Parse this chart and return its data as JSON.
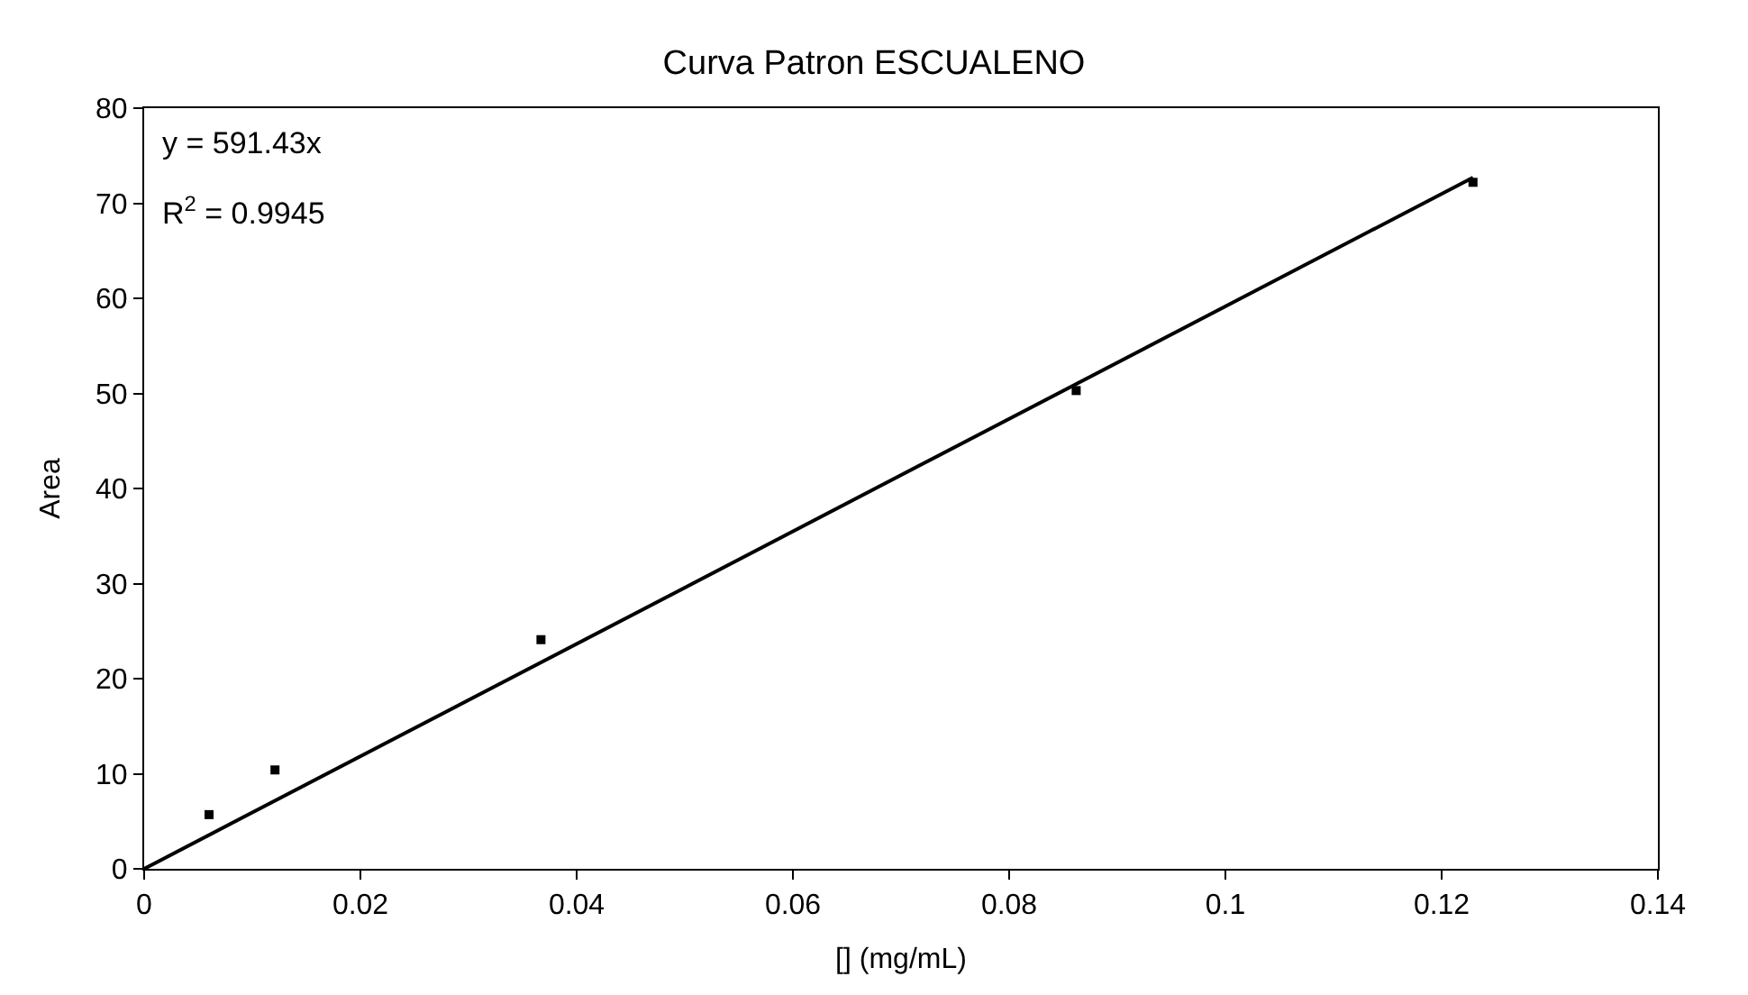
{
  "chart_data": {
    "type": "scatter",
    "title": "Curva Patron ESCUALENO",
    "xlabel": "[] (mg/mL)",
    "ylabel": "Area",
    "xlim": [
      0,
      0.14
    ],
    "xticks": [
      0,
      0.02,
      0.04,
      0.06,
      0.08,
      0.1,
      0.12,
      0.14
    ],
    "ylim": [
      0,
      80
    ],
    "yticks": [
      0,
      10,
      20,
      30,
      40,
      50,
      60,
      70,
      80
    ],
    "marker": "square",
    "annotations": [
      "y = 591.43x",
      "R$^{2}$ = 0.9945"
    ],
    "series": [
      {
        "color": "#000000",
        "x": [
          0.006,
          0.0121,
          0.0367,
          0.0862,
          0.1229
        ],
        "values": [
          5.7,
          10.4,
          24.1,
          50.3,
          72.2
        ]
      },
      {
        "type": "line",
        "color": "#000000",
        "marker": "none",
        "line_style": "solid",
        "x": [
          0,
          0.1229
        ],
        "values": [
          0,
          72.7
        ]
      }
    ]
  }
}
